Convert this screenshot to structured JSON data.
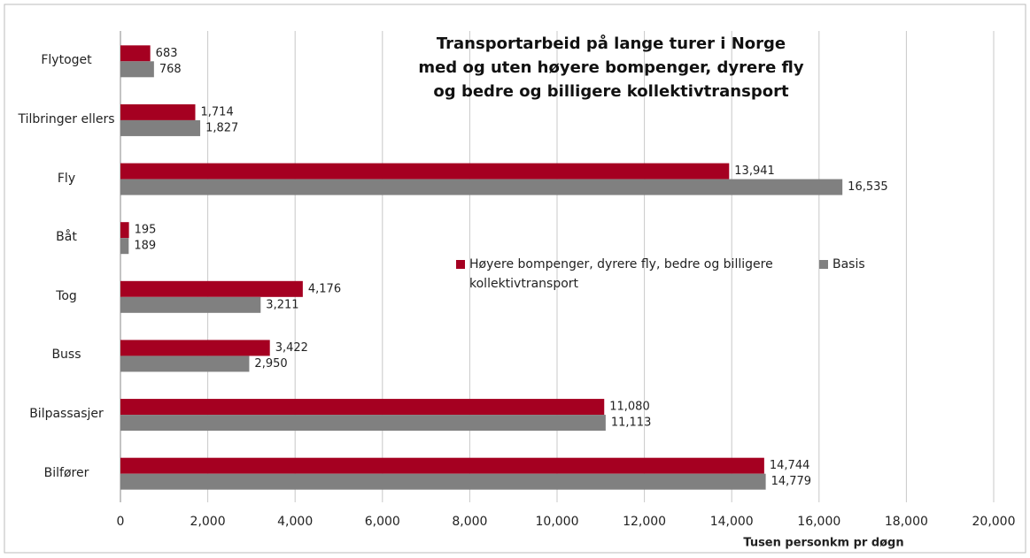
{
  "chart_data": {
    "type": "barh",
    "title": [
      "Transportarbeid på lange turer i Norge",
      "med og uten høyere bompenger, dyrere fly",
      "og bedre og billigere kollektivtransport"
    ],
    "categories": [
      "Flytoget",
      "Tilbringer ellers",
      "Fly",
      "Båt",
      "Tog",
      "Buss",
      "Bilpassasjer",
      "Bilfører"
    ],
    "series": [
      {
        "name": "Høyere bompenger, dyrere fly, bedre og billigere kollektivtransport",
        "color": "#a50021",
        "values": [
          683,
          1714,
          13941,
          195,
          4176,
          3422,
          11080,
          14744
        ],
        "value_labels": [
          "683",
          "1,714",
          "13,941",
          "195",
          "4,176",
          "3,422",
          "11,080",
          "14,744"
        ]
      },
      {
        "name": "Basis",
        "color": "#808080",
        "values": [
          768,
          1827,
          16535,
          189,
          3211,
          2950,
          11113,
          14779
        ],
        "value_labels": [
          "768",
          "1,827",
          "16,535",
          "189",
          "3,211",
          "2,950",
          "11,113",
          "14,779"
        ]
      }
    ],
    "xlabel": "Tusen personkm pr døgn",
    "xlim": [
      0,
      20000
    ],
    "xticks": [
      0,
      {
        "value": 2000,
        "label": "2,000"
      },
      {
        "value": 4000,
        "label": "4,000"
      },
      {
        "value": 6000,
        "label": "6,000"
      },
      {
        "value": 8000,
        "label": "8,000"
      },
      {
        "value": 10000,
        "label": "10,000"
      },
      {
        "value": 12000,
        "label": "12,000"
      },
      {
        "value": 14000,
        "label": "14,000"
      },
      {
        "value": 16000,
        "label": "16,000"
      },
      {
        "value": 18000,
        "label": "18,000"
      },
      {
        "value": 20000,
        "label": "20,000"
      }
    ],
    "grid": true
  }
}
